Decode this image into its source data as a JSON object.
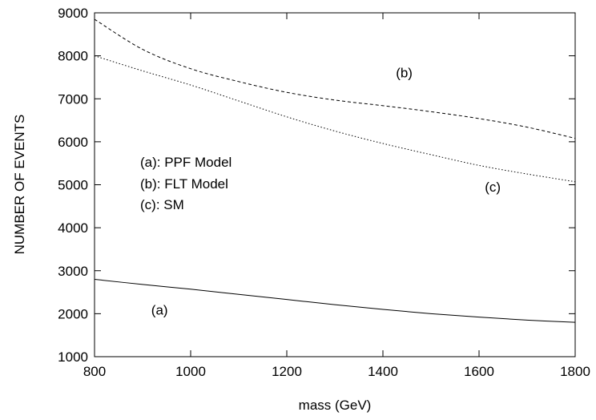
{
  "chart_data": {
    "type": "line",
    "title": "",
    "xlabel": "mass (GeV)",
    "ylabel": "NUMBER OF EVENTS",
    "xlim": [
      800,
      1800
    ],
    "ylim": [
      1000,
      9000
    ],
    "xticks": [
      800,
      1000,
      1200,
      1400,
      1600,
      1800
    ],
    "yticks": [
      1000,
      2000,
      3000,
      4000,
      5000,
      6000,
      7000,
      8000,
      9000
    ],
    "grid": false,
    "legend": "none",
    "series": [
      {
        "name": "(a)",
        "style": "solid",
        "x": [
          800,
          900,
          1000,
          1100,
          1200,
          1300,
          1400,
          1500,
          1600,
          1700,
          1800
        ],
        "y": [
          2800,
          2680,
          2570,
          2450,
          2330,
          2210,
          2100,
          2000,
          1920,
          1850,
          1800
        ]
      },
      {
        "name": "(b)",
        "style": "dashed",
        "x": [
          800,
          900,
          1000,
          1100,
          1200,
          1300,
          1400,
          1500,
          1600,
          1700,
          1800
        ],
        "y": [
          8850,
          8150,
          7700,
          7400,
          7150,
          6970,
          6840,
          6700,
          6540,
          6340,
          6080
        ]
      },
      {
        "name": "(c)",
        "style": "dotted",
        "x": [
          800,
          900,
          1000,
          1100,
          1200,
          1300,
          1400,
          1500,
          1600,
          1700,
          1800
        ],
        "y": [
          8000,
          7650,
          7320,
          6950,
          6580,
          6250,
          5960,
          5700,
          5450,
          5250,
          5070
        ]
      }
    ],
    "annotations": [
      {
        "text": "(a): PPF Model",
        "x": 895,
        "y": 5420
      },
      {
        "text": "(b): FLT Model",
        "x": 895,
        "y": 4920
      },
      {
        "text": "(c): SM",
        "x": 895,
        "y": 4430
      },
      {
        "text": "(b)",
        "x": 1427,
        "y": 7500
      },
      {
        "text": "(c)",
        "x": 1612,
        "y": 4840
      },
      {
        "text": "(a)",
        "x": 918,
        "y": 1980
      }
    ]
  }
}
